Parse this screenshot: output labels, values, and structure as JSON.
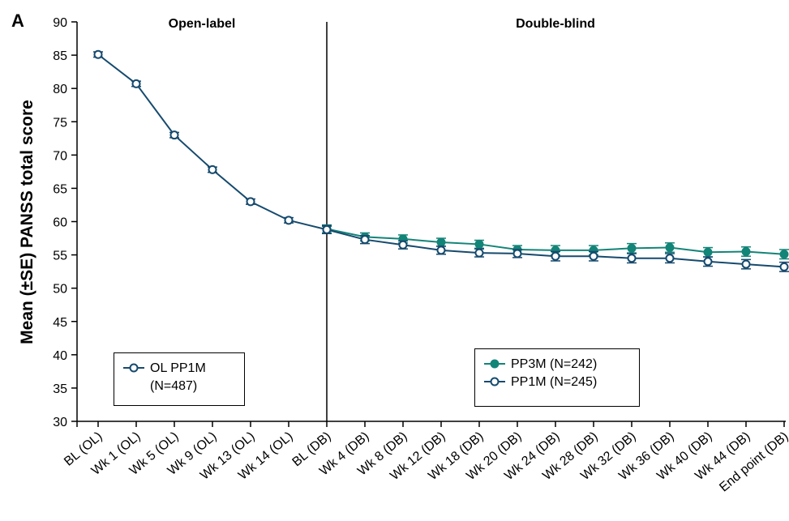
{
  "chart_data": {
    "type": "line",
    "panel_label": "A",
    "y_label": "Mean (±SE) PANSS total score",
    "annotations": [
      "Open-label",
      "Double-blind"
    ],
    "divider": "BL (DB)",
    "categories": [
      "BL (OL)",
      "Wk 1 (OL)",
      "Wk 5 (OL)",
      "Wk 9 (OL)",
      "Wk 13 (OL)",
      "Wk 14 (OL)",
      "BL (DB)",
      "Wk 4 (DB)",
      "Wk 8 (DB)",
      "Wk 12 (DB)",
      "Wk 18 (DB)",
      "Wk 20 (DB)",
      "Wk 24 (DB)",
      "Wk 28 (DB)",
      "Wk 32 (DB)",
      "Wk 36 (DB)",
      "Wk 40 (DB)",
      "Wk 44 (DB)",
      "End point (DB)"
    ],
    "ylim": [
      30,
      90
    ],
    "yticks": [
      30,
      35,
      40,
      45,
      50,
      55,
      60,
      65,
      70,
      75,
      80,
      85,
      90
    ],
    "series": [
      {
        "name": "OL PP1M (N=487)",
        "color": "#164a6e",
        "marker": "open",
        "legend": "lower left",
        "values": [
          85.1,
          80.7,
          73.0,
          67.8,
          63.0,
          60.2,
          58.8,
          null,
          null,
          null,
          null,
          null,
          null,
          null,
          null,
          null,
          null,
          null,
          null
        ],
        "errors": [
          0.4,
          0.4,
          0.4,
          0.4,
          0.4,
          0.4,
          0.5,
          null,
          null,
          null,
          null,
          null,
          null,
          null,
          null,
          null,
          null,
          null,
          null
        ]
      },
      {
        "name": "PP3M (N=242)",
        "color": "#138478",
        "marker": "filled",
        "legend": "lower right",
        "values": [
          null,
          null,
          null,
          null,
          null,
          null,
          58.9,
          57.7,
          57.4,
          56.9,
          56.6,
          55.8,
          55.7,
          55.7,
          56.0,
          56.1,
          55.4,
          55.5,
          55.1
        ],
        "errors": [
          null,
          null,
          null,
          null,
          null,
          null,
          0.6,
          0.6,
          0.6,
          0.6,
          0.6,
          0.6,
          0.7,
          0.7,
          0.7,
          0.7,
          0.7,
          0.7,
          0.7
        ]
      },
      {
        "name": "PP1M (N=245)",
        "color": "#164a6e",
        "marker": "open",
        "legend": "lower right",
        "values": [
          null,
          null,
          null,
          null,
          null,
          null,
          58.8,
          57.3,
          56.5,
          55.7,
          55.3,
          55.2,
          54.8,
          54.8,
          54.5,
          54.5,
          54.0,
          53.6,
          53.2
        ],
        "errors": [
          null,
          null,
          null,
          null,
          null,
          null,
          0.6,
          0.6,
          0.6,
          0.6,
          0.6,
          0.6,
          0.7,
          0.7,
          0.7,
          0.7,
          0.7,
          0.7,
          0.7
        ]
      }
    ]
  }
}
